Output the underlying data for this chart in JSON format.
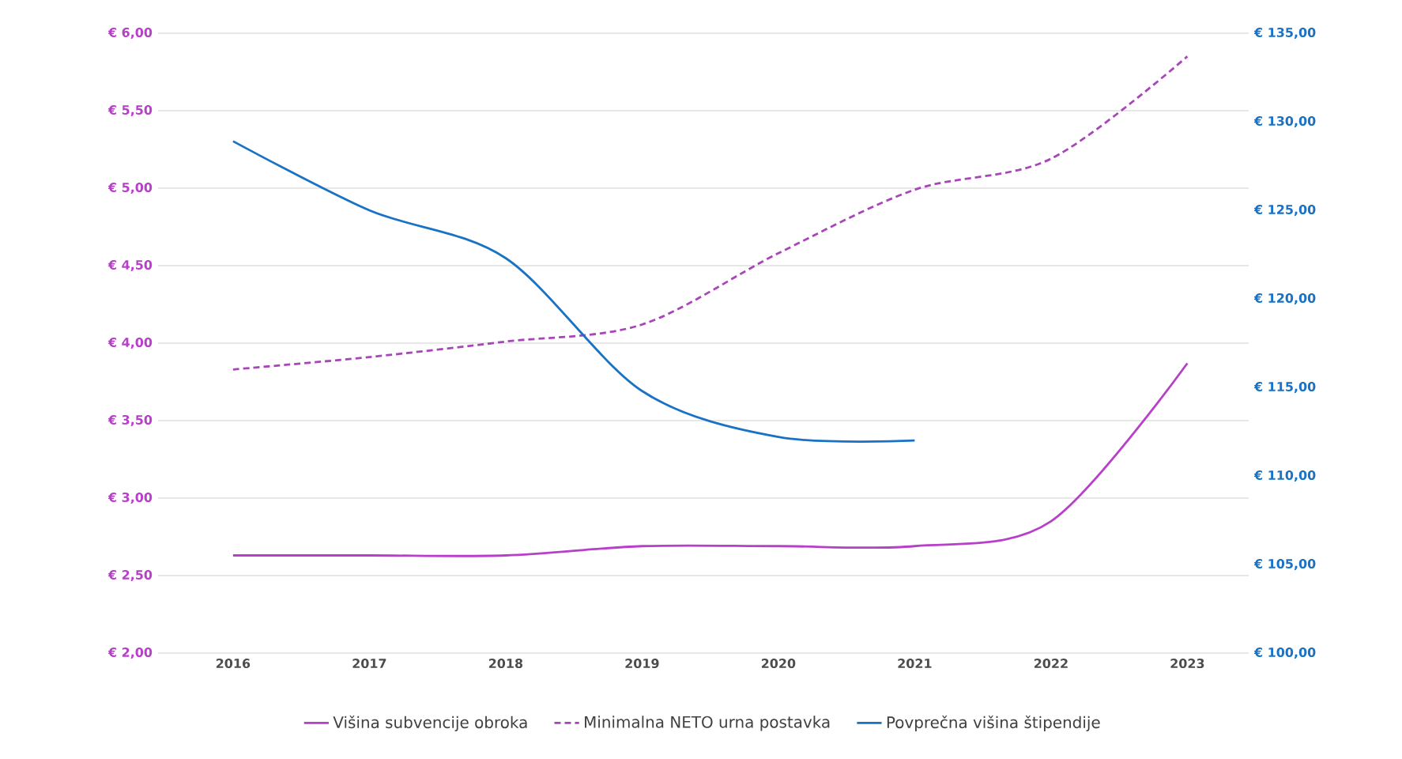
{
  "chart_data": {
    "type": "line",
    "categories": [
      "2016",
      "2017",
      "2018",
      "2019",
      "2020",
      "2021",
      "2022",
      "2023"
    ],
    "series": [
      {
        "name": "Višina subvencije obroka",
        "color": "#b83fc9",
        "line_style": "solid",
        "values": [
          2.63,
          2.63,
          2.63,
          2.69,
          2.69,
          2.69,
          2.85,
          3.87
        ]
      },
      {
        "name": "Minimalna NETO urna postavka",
        "color": "#a845b8",
        "line_style": "dashed",
        "values": [
          3.83,
          3.91,
          4.01,
          4.12,
          4.58,
          4.99,
          5.19,
          5.85
        ]
      },
      {
        "name": "Povprečna višina štipendije",
        "color": "#1a72c4",
        "line_style": "solid",
        "axis": "y2",
        "values": [
          128.9,
          125.0,
          122.3,
          114.8,
          112.2,
          112.0,
          null,
          null
        ]
      }
    ],
    "ylim": [
      2,
      6
    ],
    "yticks": [
      {
        "value": 2,
        "label": "€ 2,00"
      },
      {
        "value": 2.5,
        "label": "€ 2,50"
      },
      {
        "value": 3,
        "label": "€ 3,00"
      },
      {
        "value": 3.5,
        "label": "€ 3,50"
      },
      {
        "value": 4,
        "label": "€ 4,00"
      },
      {
        "value": 4.5,
        "label": "€ 4,50"
      },
      {
        "value": 5,
        "label": "€ 5,00"
      },
      {
        "value": 5.5,
        "label": "€ 5,50"
      },
      {
        "value": 6,
        "label": "€ 6,00"
      }
    ],
    "y2lim": [
      100,
      135
    ],
    "y2ticks": [
      {
        "value": 100,
        "label": "€ 100,00"
      },
      {
        "value": 105,
        "label": "€ 105,00"
      },
      {
        "value": 110,
        "label": "€ 110,00"
      },
      {
        "value": 115,
        "label": "€ 115,00"
      },
      {
        "value": 120,
        "label": "€ 120,00"
      },
      {
        "value": 125,
        "label": "€ 125,00"
      },
      {
        "value": 130,
        "label": "€ 130,00"
      },
      {
        "value": 135,
        "label": "€ 135,00"
      }
    ],
    "grid": "y",
    "legend": "bottom",
    "marker": "none"
  }
}
